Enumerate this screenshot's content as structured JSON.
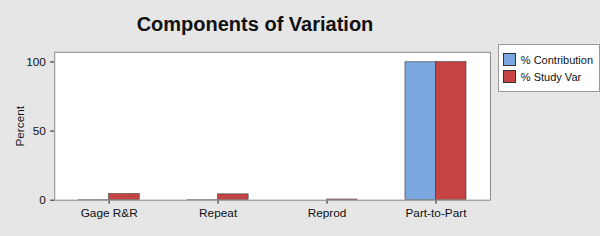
{
  "chart_data": {
    "type": "bar",
    "title": "Components of Variation",
    "y_label": "Percent",
    "categories": [
      "Gage R&R",
      "Repeat",
      "Reprod",
      "Part-to-Part"
    ],
    "series": [
      {
        "name": "% Contribution",
        "color": "#7ba7e0",
        "values": [
          0.2,
          0.18,
          0.0,
          99.8
        ]
      },
      {
        "name": "% Study Var",
        "color": "#c64343",
        "values": [
          4.4,
          4.2,
          0.5,
          99.9
        ]
      }
    ],
    "ylim": [
      0,
      107
    ],
    "yticks": [
      0,
      50,
      100
    ],
    "legend": "right"
  }
}
